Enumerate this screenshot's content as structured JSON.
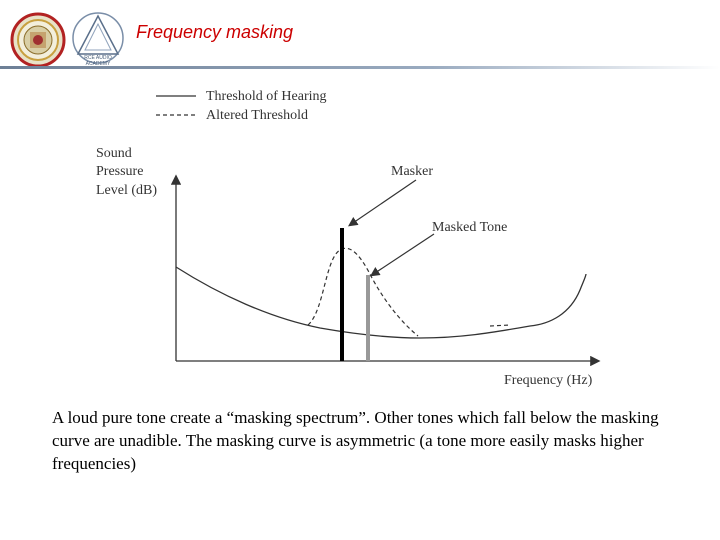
{
  "slide": {
    "title": "Frequency masking",
    "caption": "A loud pure tone create  a “masking spectrum”. Other tones which fall below the masking curve are unadible. The masking curve is asymmetric (a tone more easily masks higher frequencies)"
  },
  "logos": {
    "left": {
      "icon": "university-seal-icon"
    },
    "right": {
      "icon": "academy-triangle-logo-icon",
      "text_line1": "RCE AUDIO",
      "text_line2": "ACADEMY"
    }
  },
  "diagram": {
    "legend": {
      "solid_label": "Threshold of Hearing",
      "dashed_label": "Altered Threshold"
    },
    "y_axis_label": [
      "Sound",
      "Pressure",
      "Level (dB)"
    ],
    "x_axis_label": "Frequency (Hz)",
    "annotations": {
      "masker": "Masker",
      "masked_tone": "Masked Tone"
    },
    "colors": {
      "masker_bar": "#000000",
      "masked_tone_bar": "#999999",
      "curves": "#333333"
    }
  }
}
